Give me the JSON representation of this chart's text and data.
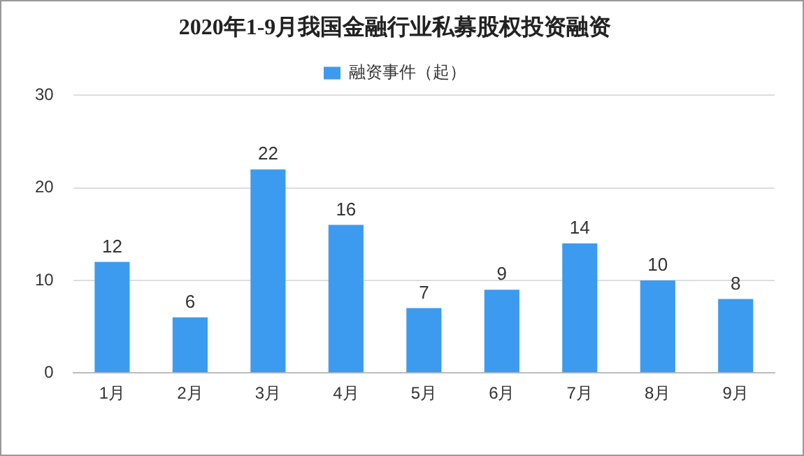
{
  "chart_data": {
    "type": "bar",
    "title": "2020年1-9月我国金融行业私募股权投资融资",
    "categories": [
      "1月",
      "2月",
      "3月",
      "4月",
      "5月",
      "6月",
      "7月",
      "8月",
      "9月"
    ],
    "series": [
      {
        "name": "融资事件（起）",
        "color": "#3d9bef",
        "values": [
          12,
          6,
          22,
          16,
          7,
          9,
          14,
          10,
          8
        ]
      }
    ],
    "ylim": [
      0,
      30
    ],
    "yticks": [
      0,
      10,
      20,
      30
    ],
    "grid": "y",
    "legend": "top",
    "data_labels": true
  }
}
